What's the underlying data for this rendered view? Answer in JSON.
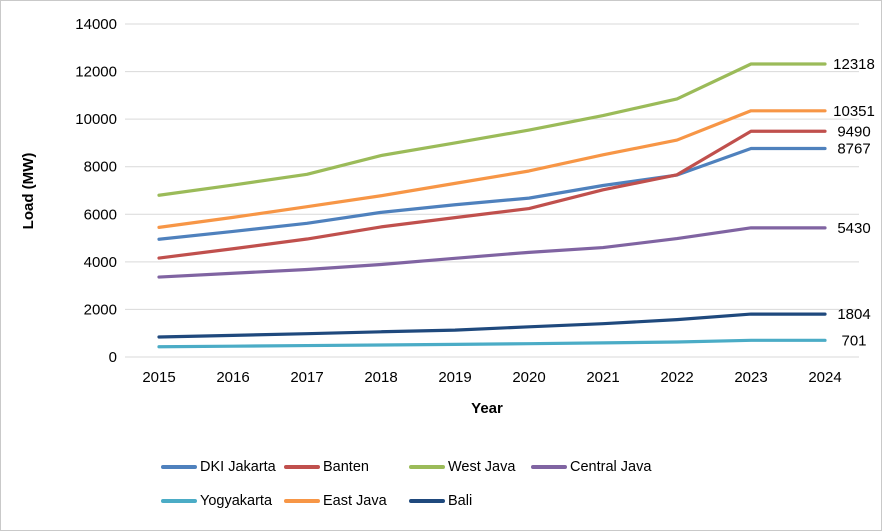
{
  "style": {
    "background": "#ffffff",
    "border_color": "#c9c9c9",
    "gridline_color": "#d9d9d9",
    "text_color": "#000000"
  },
  "chart_data": {
    "type": "line",
    "title": "",
    "xlabel": "Year",
    "ylabel": "Load (MW)",
    "x": [
      2015,
      2016,
      2017,
      2018,
      2019,
      2020,
      2021,
      2022,
      2023,
      2024
    ],
    "ylim": [
      0,
      14000
    ],
    "ytick_step": 2000,
    "grid": "horizontal-only",
    "legend_position": "bottom",
    "series": [
      {
        "name": "DKI Jakarta",
        "color": "#4F81BD",
        "end_label": "8767",
        "values": [
          4950,
          5280,
          5620,
          6080,
          6400,
          6680,
          7210,
          7650,
          8767,
          8767
        ]
      },
      {
        "name": "Banten",
        "color": "#C0504D",
        "end_label": "9490",
        "values": [
          4160,
          4550,
          4960,
          5470,
          5860,
          6240,
          7030,
          7660,
          9490,
          9490
        ]
      },
      {
        "name": "West Java",
        "color": "#9BBB59",
        "end_label": "12318",
        "values": [
          6800,
          7230,
          7680,
          8470,
          9000,
          9540,
          10150,
          10850,
          12318,
          12318
        ]
      },
      {
        "name": "Central Java",
        "color": "#8064A2",
        "end_label": "5430",
        "values": [
          3360,
          3520,
          3680,
          3890,
          4150,
          4400,
          4600,
          4980,
          5430,
          5430
        ]
      },
      {
        "name": "Yogyakarta",
        "color": "#4BACC6",
        "end_label": "701",
        "values": [
          430,
          455,
          480,
          505,
          530,
          560,
          595,
          630,
          701,
          701
        ]
      },
      {
        "name": "East Java",
        "color": "#F79646",
        "end_label": "10351",
        "values": [
          5450,
          5870,
          6320,
          6780,
          7300,
          7820,
          8500,
          9120,
          10351,
          10351
        ]
      },
      {
        "name": "Bali",
        "color": "#1F497D",
        "end_label": "1804",
        "values": [
          840,
          910,
          980,
          1060,
          1130,
          1270,
          1400,
          1570,
          1804,
          1804
        ]
      }
    ],
    "legend_rows": [
      [
        "DKI Jakarta",
        "Banten",
        "West Java",
        "Central Java"
      ],
      [
        "Yogyakarta",
        "East Java",
        "Bali"
      ]
    ]
  }
}
